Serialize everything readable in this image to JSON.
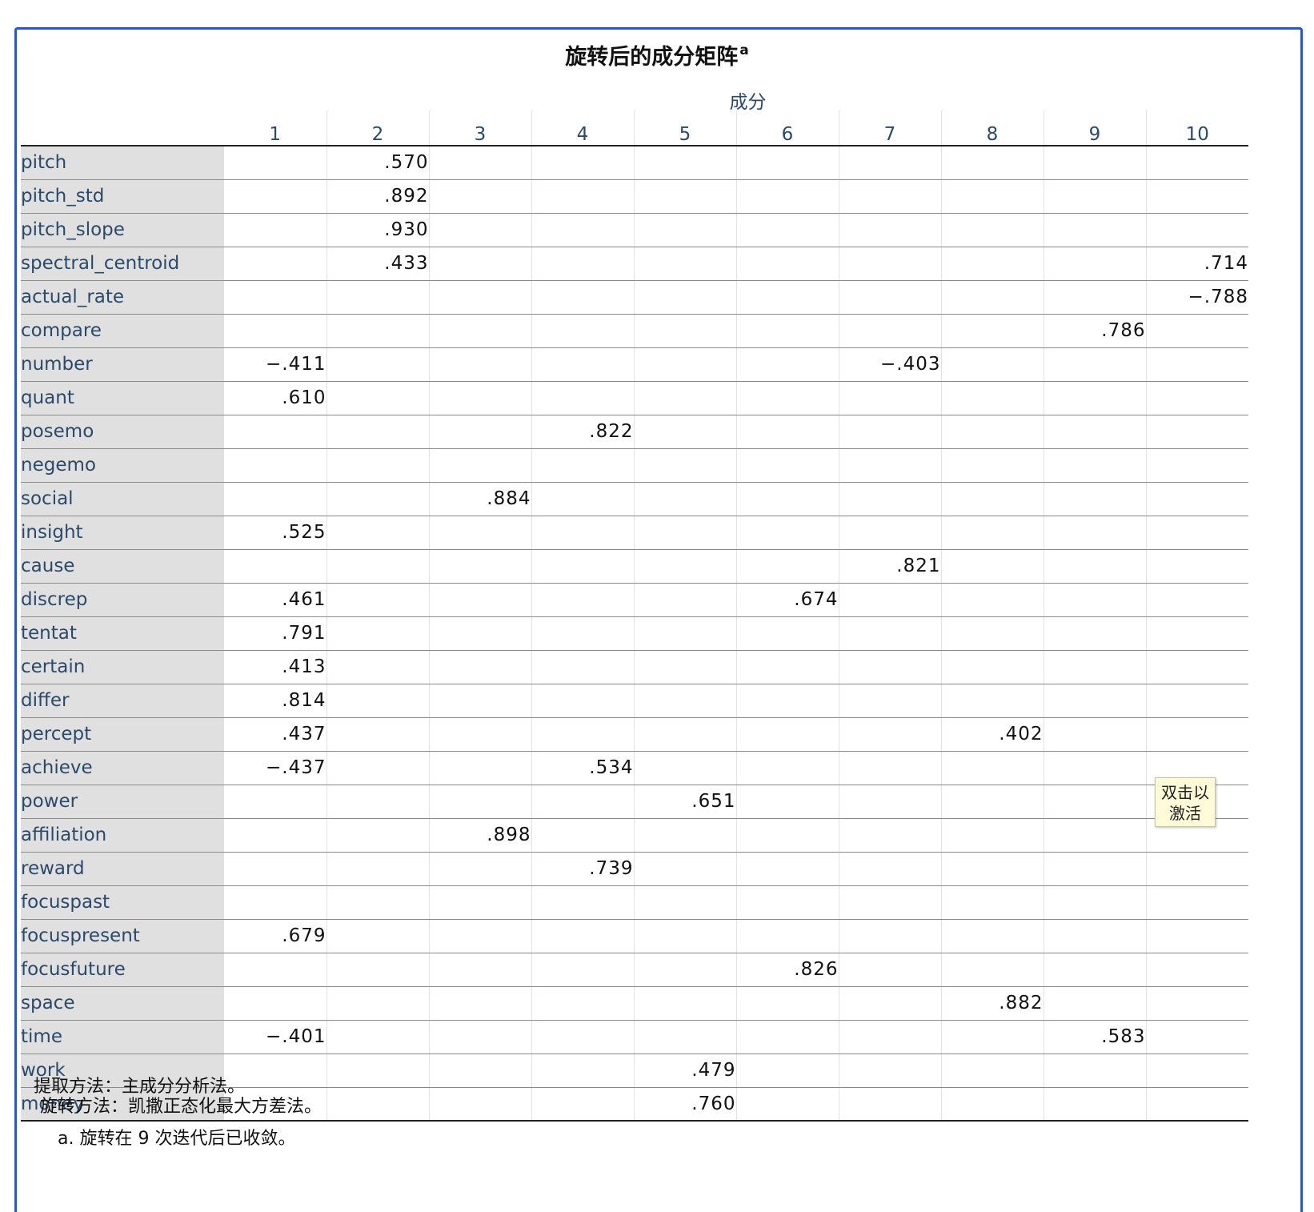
{
  "table": {
    "title": "旋转后的成分矩阵",
    "title_superscript": "a",
    "component_header": "成分",
    "columns": [
      "1",
      "2",
      "3",
      "4",
      "5",
      "6",
      "7",
      "8",
      "9",
      "10"
    ],
    "rows": [
      {
        "label": "pitch",
        "values": [
          "",
          ".570",
          "",
          "",
          "",
          "",
          "",
          "",
          "",
          ""
        ]
      },
      {
        "label": "pitch_std",
        "values": [
          "",
          ".892",
          "",
          "",
          "",
          "",
          "",
          "",
          "",
          ""
        ]
      },
      {
        "label": "pitch_slope",
        "values": [
          "",
          ".930",
          "",
          "",
          "",
          "",
          "",
          "",
          "",
          ""
        ]
      },
      {
        "label": "spectral_centroid",
        "values": [
          "",
          ".433",
          "",
          "",
          "",
          "",
          "",
          "",
          "",
          ".714"
        ]
      },
      {
        "label": "actual_rate",
        "values": [
          "",
          "",
          "",
          "",
          "",
          "",
          "",
          "",
          "",
          "−.788"
        ]
      },
      {
        "label": "compare",
        "values": [
          "",
          "",
          "",
          "",
          "",
          "",
          "",
          "",
          ".786",
          ""
        ]
      },
      {
        "label": "number",
        "values": [
          "−.411",
          "",
          "",
          "",
          "",
          "",
          "−.403",
          "",
          "",
          ""
        ]
      },
      {
        "label": "quant",
        "values": [
          ".610",
          "",
          "",
          "",
          "",
          "",
          "",
          "",
          "",
          ""
        ]
      },
      {
        "label": "posemo",
        "values": [
          "",
          "",
          "",
          ".822",
          "",
          "",
          "",
          "",
          "",
          ""
        ]
      },
      {
        "label": "negemo",
        "values": [
          "",
          "",
          "",
          "",
          "",
          "",
          "",
          "",
          "",
          ""
        ]
      },
      {
        "label": "social",
        "values": [
          "",
          "",
          ".884",
          "",
          "",
          "",
          "",
          "",
          "",
          ""
        ]
      },
      {
        "label": "insight",
        "values": [
          ".525",
          "",
          "",
          "",
          "",
          "",
          "",
          "",
          "",
          ""
        ]
      },
      {
        "label": "cause",
        "values": [
          "",
          "",
          "",
          "",
          "",
          "",
          ".821",
          "",
          "",
          ""
        ]
      },
      {
        "label": "discrep",
        "values": [
          ".461",
          "",
          "",
          "",
          "",
          ".674",
          "",
          "",
          "",
          ""
        ]
      },
      {
        "label": "tentat",
        "values": [
          ".791",
          "",
          "",
          "",
          "",
          "",
          "",
          "",
          "",
          ""
        ]
      },
      {
        "label": "certain",
        "values": [
          ".413",
          "",
          "",
          "",
          "",
          "",
          "",
          "",
          "",
          ""
        ]
      },
      {
        "label": "differ",
        "values": [
          ".814",
          "",
          "",
          "",
          "",
          "",
          "",
          "",
          "",
          ""
        ]
      },
      {
        "label": "percept",
        "values": [
          ".437",
          "",
          "",
          "",
          "",
          "",
          "",
          ".402",
          "",
          ""
        ]
      },
      {
        "label": "achieve",
        "values": [
          "−.437",
          "",
          "",
          ".534",
          "",
          "",
          "",
          "",
          "",
          ""
        ]
      },
      {
        "label": "power",
        "values": [
          "",
          "",
          "",
          "",
          ".651",
          "",
          "",
          "",
          "",
          ""
        ]
      },
      {
        "label": "affiliation",
        "values": [
          "",
          "",
          ".898",
          "",
          "",
          "",
          "",
          "",
          "",
          ""
        ]
      },
      {
        "label": "reward",
        "values": [
          "",
          "",
          "",
          ".739",
          "",
          "",
          "",
          "",
          "",
          ""
        ]
      },
      {
        "label": "focuspast",
        "values": [
          "",
          "",
          "",
          "",
          "",
          "",
          "",
          "",
          "",
          ""
        ]
      },
      {
        "label": "focuspresent",
        "values": [
          ".679",
          "",
          "",
          "",
          "",
          "",
          "",
          "",
          "",
          ""
        ]
      },
      {
        "label": "focusfuture",
        "values": [
          "",
          "",
          "",
          "",
          "",
          ".826",
          "",
          "",
          "",
          ""
        ]
      },
      {
        "label": "space",
        "values": [
          "",
          "",
          "",
          "",
          "",
          "",
          "",
          ".882",
          "",
          ""
        ]
      },
      {
        "label": "time",
        "values": [
          "−.401",
          "",
          "",
          "",
          "",
          "",
          "",
          "",
          ".583",
          ""
        ]
      },
      {
        "label": "work",
        "values": [
          "",
          "",
          "",
          "",
          ".479",
          "",
          "",
          "",
          "",
          ""
        ]
      },
      {
        "label": "money",
        "values": [
          "",
          "",
          "",
          "",
          ".760",
          "",
          "",
          "",
          "",
          ""
        ]
      }
    ]
  },
  "footnotes": {
    "extraction": "提取方法：主成分分析法。",
    "rotation": "旋转方法：凯撒正态化最大方差法。",
    "note_a": "a. 旋转在 9 次迭代后已收敛。"
  },
  "tooltip": {
    "line1": "双击以",
    "line2": "激活"
  },
  "colors": {
    "frame_border": "#2357d6",
    "label_bg": "#e0e0e0",
    "header_text": "#2b4a6a",
    "tooltip_bg": "#fdfbd8"
  }
}
